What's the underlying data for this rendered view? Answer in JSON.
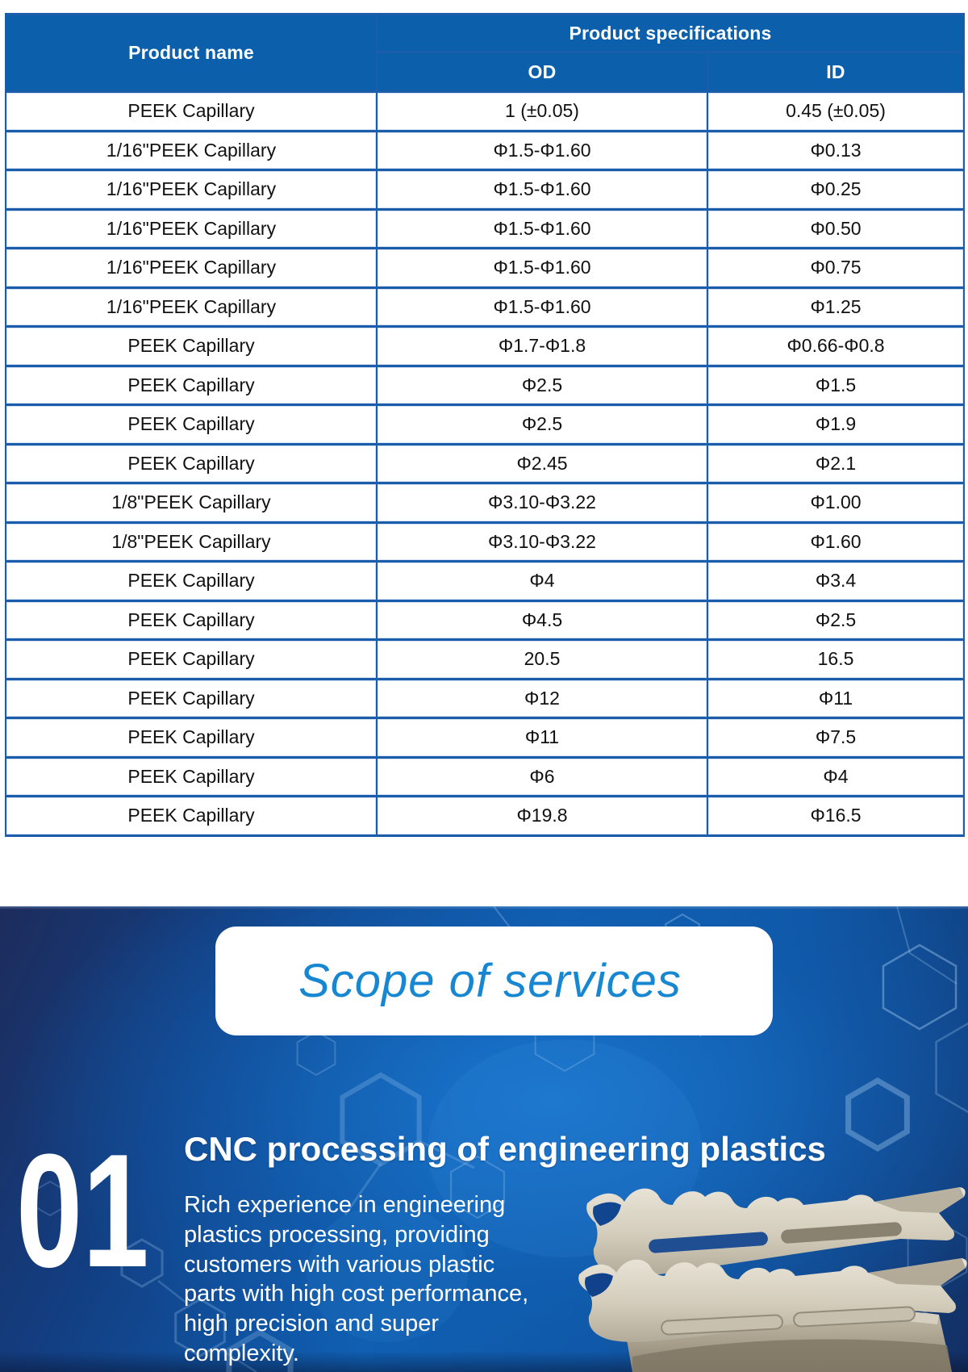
{
  "table": {
    "header": {
      "product_name": "Product name",
      "product_specifications": "Product specifications",
      "od": "OD",
      "id": "ID"
    },
    "rows": [
      {
        "name": "PEEK Capillary",
        "od": "1 (±0.05)",
        "id": "0.45 (±0.05)"
      },
      {
        "name": "1/16\"PEEK Capillary",
        "od": "Φ1.5-Φ1.60",
        "id": "Φ0.13"
      },
      {
        "name": "1/16\"PEEK Capillary",
        "od": "Φ1.5-Φ1.60",
        "id": "Φ0.25"
      },
      {
        "name": "1/16\"PEEK Capillary",
        "od": "Φ1.5-Φ1.60",
        "id": "Φ0.50"
      },
      {
        "name": "1/16\"PEEK Capillary",
        "od": "Φ1.5-Φ1.60",
        "id": "Φ0.75"
      },
      {
        "name": "1/16\"PEEK Capillary",
        "od": "Φ1.5-Φ1.60",
        "id": "Φ1.25"
      },
      {
        "name": "PEEK Capillary",
        "od": "Φ1.7-Φ1.8",
        "id": "Φ0.66-Φ0.8"
      },
      {
        "name": "PEEK Capillary",
        "od": "Φ2.5",
        "id": "Φ1.5"
      },
      {
        "name": "PEEK Capillary",
        "od": "Φ2.5",
        "id": "Φ1.9"
      },
      {
        "name": "PEEK Capillary",
        "od": "Φ2.45",
        "id": "Φ2.1"
      },
      {
        "name": "1/8\"PEEK Capillary",
        "od": "Φ3.10-Φ3.22",
        "id": "Φ1.00"
      },
      {
        "name": "1/8\"PEEK Capillary",
        "od": "Φ3.10-Φ3.22",
        "id": "Φ1.60"
      },
      {
        "name": "PEEK Capillary",
        "od": "Φ4",
        "id": "Φ3.4"
      },
      {
        "name": "PEEK Capillary",
        "od": "Φ4.5",
        "id": "Φ2.5"
      },
      {
        "name": "PEEK Capillary",
        "od": "20.5",
        "id": "16.5"
      },
      {
        "name": "PEEK Capillary",
        "od": "Φ12",
        "id": "Φ11"
      },
      {
        "name": "PEEK Capillary",
        "od": "Φ11",
        "id": "Φ7.5"
      },
      {
        "name": "PEEK Capillary",
        "od": "Φ6",
        "id": "Φ4"
      },
      {
        "name": "PEEK Capillary",
        "od": "Φ19.8",
        "id": "Φ16.5"
      }
    ]
  },
  "services": {
    "title": "Scope of services",
    "item_number": "01",
    "item_title": "CNC processing of engineering plastics",
    "item_description_lines": [
      "Rich experience in engineering",
      "plastics processing, providing",
      "customers with various plastic",
      "parts with high cost performance,",
      "high precision and super",
      "complexity."
    ]
  },
  "colors": {
    "table_header_blue": "#0c60ab",
    "table_border_blue": "#1b5cab",
    "section_bright_blue": "#1a76cd",
    "section_dark_navy": "#1d2c5c",
    "title_text_blue": "#1787d2",
    "part_beige_light": "#e6e1d4",
    "part_beige_dark": "#8e8673"
  }
}
